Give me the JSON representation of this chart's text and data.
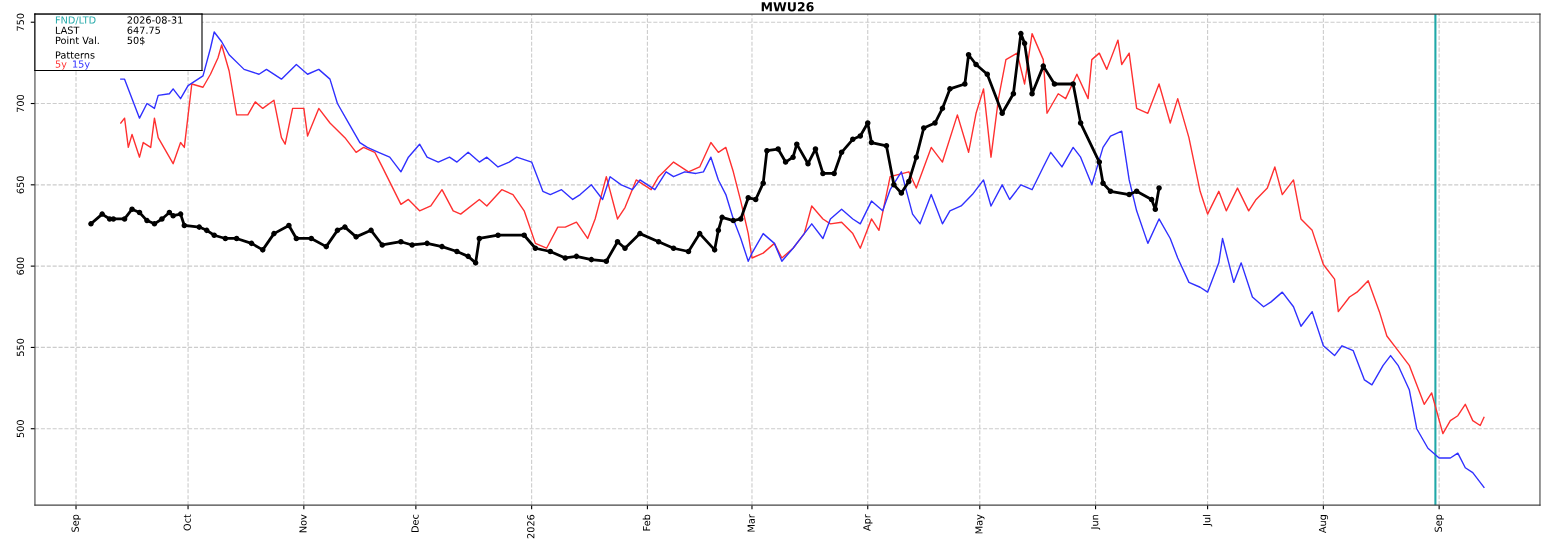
{
  "chart_data": {
    "type": "line",
    "title": "MWU26",
    "annotations": [
      "2026-08-31",
      "LAST",
      "647.75",
      "Point Val.",
      "50$",
      "Patterns"
    ],
    "xlim": [
      "2025-08-21",
      "2026-09-28"
    ],
    "xticks": [
      {
        "value": "2025-09-01",
        "label": "Sep"
      },
      {
        "value": "2025-10-01",
        "label": "Oct"
      },
      {
        "value": "2025-11-01",
        "label": "Nov"
      },
      {
        "value": "2025-12-01",
        "label": "Dec"
      },
      {
        "value": "2026-01-01",
        "label": "2026"
      },
      {
        "value": "2026-02-01",
        "label": "Feb"
      },
      {
        "value": "2026-03-01",
        "label": "Mar"
      },
      {
        "value": "2026-04-01",
        "label": "Apr"
      },
      {
        "value": "2026-05-01",
        "label": "May"
      },
      {
        "value": "2026-06-01",
        "label": "Jun"
      },
      {
        "value": "2026-07-01",
        "label": "Jul"
      },
      {
        "value": "2026-08-01",
        "label": "Aug"
      },
      {
        "value": "2026-09-01",
        "label": "Sep"
      }
    ],
    "ylim": [
      453,
      755
    ],
    "yticks": [
      500,
      550,
      600,
      650,
      700,
      750
    ],
    "grid": true,
    "legend": "top left",
    "ref_lines": [
      {
        "axis": "x",
        "value": "2026-08-31",
        "label": "FND/LTD",
        "color": "#20a8a8"
      }
    ],
    "series": [
      {
        "name": "5y",
        "color": "#ff3030",
        "x": [
          "2025-09-13",
          "2025-09-14",
          "2025-09-15",
          "2025-09-16",
          "2025-09-18",
          "2025-09-19",
          "2025-09-21",
          "2025-09-22",
          "2025-09-23",
          "2025-09-26",
          "2025-09-27",
          "2025-09-29",
          "2025-09-30",
          "2025-10-02",
          "2025-10-05",
          "2025-10-07",
          "2025-10-09",
          "2025-10-10",
          "2025-10-12",
          "2025-10-14",
          "2025-10-17",
          "2025-10-19",
          "2025-10-21",
          "2025-10-24",
          "2025-10-26",
          "2025-10-27",
          "2025-10-29",
          "2025-11-01",
          "2025-11-02",
          "2025-11-05",
          "2025-11-08",
          "2025-11-12",
          "2025-11-15",
          "2025-11-17",
          "2025-11-20",
          "2025-11-22",
          "2025-11-27",
          "2025-11-29",
          "2025-12-02",
          "2025-12-05",
          "2025-12-08",
          "2025-12-11",
          "2025-12-13",
          "2025-12-18",
          "2025-12-20",
          "2025-12-24",
          "2025-12-27",
          "2025-12-30",
          "2026-01-02",
          "2026-01-05",
          "2026-01-08",
          "2026-01-10",
          "2026-01-13",
          "2026-01-16",
          "2026-01-18",
          "2026-01-21",
          "2026-01-24",
          "2026-01-26",
          "2026-01-29",
          "2026-02-02",
          "2026-02-04",
          "2026-02-08",
          "2026-02-12",
          "2026-02-15",
          "2026-02-18",
          "2026-02-20",
          "2026-02-22",
          "2026-02-24",
          "2026-02-26",
          "2026-02-28",
          "2026-03-01",
          "2026-03-04",
          "2026-03-07",
          "2026-03-09",
          "2026-03-12",
          "2026-03-15",
          "2026-03-17",
          "2026-03-20",
          "2026-03-22",
          "2026-03-25",
          "2026-03-28",
          "2026-03-30",
          "2026-04-02",
          "2026-04-04",
          "2026-04-07",
          "2026-04-12",
          "2026-04-14",
          "2026-04-18",
          "2026-04-21",
          "2026-04-25",
          "2026-04-28",
          "2026-04-30",
          "2026-05-02",
          "2026-05-04",
          "2026-05-06",
          "2026-05-08",
          "2026-05-11",
          "2026-05-13",
          "2026-05-15",
          "2026-05-18",
          "2026-05-19",
          "2026-05-22",
          "2026-05-24",
          "2026-05-27",
          "2026-05-30",
          "2026-05-31",
          "2026-06-02",
          "2026-06-04",
          "2026-06-07",
          "2026-06-08",
          "2026-06-10",
          "2026-06-12",
          "2026-06-15",
          "2026-06-18",
          "2026-06-21",
          "2026-06-23",
          "2026-06-26",
          "2026-06-29",
          "2026-07-01",
          "2026-07-04",
          "2026-07-06",
          "2026-07-09",
          "2026-07-12",
          "2026-07-14",
          "2026-07-17",
          "2026-07-19",
          "2026-07-21",
          "2026-07-24",
          "2026-07-26",
          "2026-07-29",
          "2026-08-01",
          "2026-08-04",
          "2026-08-05",
          "2026-08-08",
          "2026-08-10",
          "2026-08-13",
          "2026-08-16",
          "2026-08-18",
          "2026-08-21",
          "2026-08-24",
          "2026-08-26",
          "2026-08-28",
          "2026-08-30",
          "2026-09-02",
          "2026-09-04",
          "2026-09-06",
          "2026-09-08",
          "2026-09-10",
          "2026-09-12",
          "2026-09-13"
        ],
        "values": [
          688,
          691,
          673,
          681,
          667,
          676,
          673,
          691,
          679,
          667,
          663,
          676,
          673,
          712,
          710,
          718,
          728,
          736,
          720,
          693,
          693,
          701,
          697,
          702,
          679,
          675,
          697,
          697,
          680,
          697,
          688,
          679,
          670,
          673,
          670,
          661,
          638,
          641,
          634,
          637,
          647,
          634,
          632,
          641,
          637,
          647,
          644,
          634,
          614,
          611,
          624,
          624,
          627,
          617,
          629,
          655,
          629,
          636,
          653,
          647,
          655,
          664,
          658,
          661,
          676,
          670,
          673,
          658,
          640,
          620,
          605,
          608,
          614,
          605,
          611,
          620,
          637,
          629,
          626,
          627,
          620,
          611,
          629,
          622,
          655,
          658,
          648,
          673,
          664,
          693,
          670,
          694,
          709,
          667,
          703,
          727,
          731,
          712,
          743,
          727,
          694,
          706,
          703,
          718,
          703,
          727,
          731,
          721,
          739,
          724,
          731,
          697,
          694,
          712,
          688,
          703,
          679,
          646,
          632,
          646,
          634,
          648,
          634,
          641,
          648,
          661,
          644,
          653,
          629,
          622,
          601,
          592,
          572,
          581,
          584,
          591,
          572,
          557,
          548,
          539,
          527,
          515,
          522,
          497,
          505,
          508,
          515,
          505,
          502,
          507
        ]
      },
      {
        "name": "15y",
        "color": "#3030ff",
        "x": [
          "2025-09-13",
          "2025-09-14",
          "2025-09-17",
          "2025-09-18",
          "2025-09-20",
          "2025-09-22",
          "2025-09-23",
          "2025-09-26",
          "2025-09-27",
          "2025-09-29",
          "2025-10-01",
          "2025-10-05",
          "2025-10-07",
          "2025-10-08",
          "2025-10-10",
          "2025-10-12",
          "2025-10-16",
          "2025-10-20",
          "2025-10-22",
          "2025-10-26",
          "2025-10-30",
          "2025-11-02",
          "2025-11-05",
          "2025-11-08",
          "2025-11-10",
          "2025-11-13",
          "2025-11-16",
          "2025-11-18",
          "2025-11-21",
          "2025-11-24",
          "2025-11-27",
          "2025-11-29",
          "2025-12-02",
          "2025-12-04",
          "2025-12-07",
          "2025-12-10",
          "2025-12-12",
          "2025-12-15",
          "2025-12-18",
          "2025-12-20",
          "2025-12-23",
          "2025-12-26",
          "2025-12-28",
          "2026-01-01",
          "2026-01-04",
          "2026-01-06",
          "2026-01-09",
          "2026-01-12",
          "2026-01-14",
          "2026-01-17",
          "2026-01-20",
          "2026-01-22",
          "2026-01-25",
          "2026-01-28",
          "2026-01-30",
          "2026-02-03",
          "2026-02-06",
          "2026-02-08",
          "2026-02-11",
          "2026-02-14",
          "2026-02-16",
          "2026-02-18",
          "2026-02-20",
          "2026-02-22",
          "2026-02-24",
          "2026-02-26",
          "2026-02-28",
          "2026-03-01",
          "2026-03-04",
          "2026-03-07",
          "2026-03-09",
          "2026-03-12",
          "2026-03-15",
          "2026-03-17",
          "2026-03-20",
          "2026-03-22",
          "2026-03-25",
          "2026-03-28",
          "2026-03-30",
          "2026-04-02",
          "2026-04-05",
          "2026-04-07",
          "2026-04-10",
          "2026-04-13",
          "2026-04-15",
          "2026-04-18",
          "2026-04-21",
          "2026-04-23",
          "2026-04-26",
          "2026-04-29",
          "2026-05-02",
          "2026-05-04",
          "2026-05-07",
          "2026-05-09",
          "2026-05-12",
          "2026-05-15",
          "2026-05-18",
          "2026-05-20",
          "2026-05-23",
          "2026-05-26",
          "2026-05-28",
          "2026-05-31",
          "2026-06-03",
          "2026-06-05",
          "2026-06-08",
          "2026-06-10",
          "2026-06-12",
          "2026-06-15",
          "2026-06-18",
          "2026-06-21",
          "2026-06-23",
          "2026-06-26",
          "2026-06-29",
          "2026-07-01",
          "2026-07-04",
          "2026-07-05",
          "2026-07-08",
          "2026-07-10",
          "2026-07-13",
          "2026-07-16",
          "2026-07-18",
          "2026-07-21",
          "2026-07-24",
          "2026-07-26",
          "2026-07-29",
          "2026-08-01",
          "2026-08-04",
          "2026-08-06",
          "2026-08-09",
          "2026-08-12",
          "2026-08-14",
          "2026-08-17",
          "2026-08-19",
          "2026-08-21",
          "2026-08-24",
          "2026-08-26",
          "2026-08-29",
          "2026-09-01",
          "2026-09-04",
          "2026-09-06",
          "2026-09-08",
          "2026-09-10",
          "2026-09-13"
        ],
        "values": [
          715,
          715,
          697,
          691,
          700,
          697,
          705,
          706,
          709,
          703,
          711,
          717,
          734,
          744,
          738,
          730,
          721,
          718,
          721,
          715,
          724,
          718,
          721,
          715,
          700,
          688,
          676,
          673,
          670,
          667,
          658,
          667,
          675,
          667,
          664,
          667,
          664,
          670,
          664,
          667,
          661,
          664,
          667,
          664,
          646,
          644,
          647,
          641,
          644,
          650,
          641,
          655,
          650,
          647,
          653,
          647,
          658,
          655,
          658,
          657,
          658,
          667,
          653,
          644,
          629,
          617,
          603,
          608,
          620,
          614,
          603,
          611,
          620,
          626,
          617,
          629,
          635,
          629,
          626,
          640,
          634,
          647,
          658,
          632,
          626,
          644,
          626,
          634,
          637,
          644,
          653,
          637,
          650,
          641,
          650,
          647,
          661,
          670,
          661,
          673,
          667,
          650,
          673,
          680,
          683,
          653,
          634,
          614,
          629,
          617,
          605,
          590,
          587,
          584,
          602,
          617,
          590,
          602,
          581,
          575,
          578,
          584,
          575,
          563,
          572,
          551,
          545,
          551,
          548,
          530,
          527,
          539,
          545,
          539,
          524,
          500,
          488,
          482,
          482,
          485,
          476,
          473,
          464
        ]
      },
      {
        "color": "#000000",
        "marker": "circle",
        "x": [
          "2025-09-05",
          "2025-09-08",
          "2025-09-10",
          "2025-09-11",
          "2025-09-14",
          "2025-09-16",
          "2025-09-18",
          "2025-09-20",
          "2025-09-22",
          "2025-09-24",
          "2025-09-26",
          "2025-09-27",
          "2025-09-29",
          "2025-09-30",
          "2025-10-04",
          "2025-10-06",
          "2025-10-08",
          "2025-10-11",
          "2025-10-14",
          "2025-10-18",
          "2025-10-21",
          "2025-10-24",
          "2025-10-28",
          "2025-10-30",
          "2025-11-03",
          "2025-11-07",
          "2025-11-10",
          "2025-11-12",
          "2025-11-15",
          "2025-11-19",
          "2025-11-22",
          "2025-11-27",
          "2025-11-30",
          "2025-12-04",
          "2025-12-08",
          "2025-12-12",
          "2025-12-15",
          "2025-12-17",
          "2025-12-18",
          "2025-12-23",
          "2025-12-30",
          "2026-01-02",
          "2026-01-06",
          "2026-01-10",
          "2026-01-13",
          "2026-01-17",
          "2026-01-21",
          "2026-01-24",
          "2026-01-26",
          "2026-01-30",
          "2026-02-04",
          "2026-02-08",
          "2026-02-12",
          "2026-02-15",
          "2026-02-19",
          "2026-02-20",
          "2026-02-21",
          "2026-02-24",
          "2026-02-26",
          "2026-02-28",
          "2026-03-02",
          "2026-03-04",
          "2026-03-05",
          "2026-03-08",
          "2026-03-10",
          "2026-03-12",
          "2026-03-13",
          "2026-03-16",
          "2026-03-18",
          "2026-03-20",
          "2026-03-23",
          "2026-03-25",
          "2026-03-28",
          "2026-03-30",
          "2026-04-01",
          "2026-04-02",
          "2026-04-06",
          "2026-04-08",
          "2026-04-10",
          "2026-04-12",
          "2026-04-14",
          "2026-04-16",
          "2026-04-19",
          "2026-04-21",
          "2026-04-23",
          "2026-04-27",
          "2026-04-28",
          "2026-04-30",
          "2026-05-03",
          "2026-05-07",
          "2026-05-10",
          "2026-05-12",
          "2026-05-13",
          "2026-05-15",
          "2026-05-18",
          "2026-05-21",
          "2026-05-26",
          "2026-05-28",
          "2026-06-02",
          "2026-06-03",
          "2026-06-05",
          "2026-06-10",
          "2026-06-12",
          "2026-06-16",
          "2026-06-17",
          "2026-06-18"
        ],
        "values": [
          626,
          632,
          629,
          629,
          629,
          635,
          633,
          628,
          626,
          629,
          633,
          631,
          632,
          625,
          624,
          622,
          619,
          617,
          617,
          614,
          610,
          620,
          625,
          617,
          617,
          612,
          622,
          624,
          618,
          622,
          613,
          615,
          613,
          614,
          612,
          609,
          606,
          602,
          617,
          619,
          619,
          611,
          609,
          605,
          606,
          604,
          603,
          615,
          611,
          620,
          615,
          611,
          609,
          620,
          610,
          622,
          630,
          628,
          629,
          642,
          641,
          651,
          671,
          672,
          664,
          667,
          675,
          663,
          672,
          657,
          657,
          670,
          678,
          680,
          688,
          676,
          674,
          650,
          645,
          652,
          667,
          685,
          688,
          697,
          709,
          712,
          730,
          724,
          718,
          694,
          706,
          743,
          737,
          706,
          723,
          712,
          712,
          688,
          664,
          651,
          646,
          644,
          646,
          641,
          635,
          648
        ]
      }
    ]
  }
}
